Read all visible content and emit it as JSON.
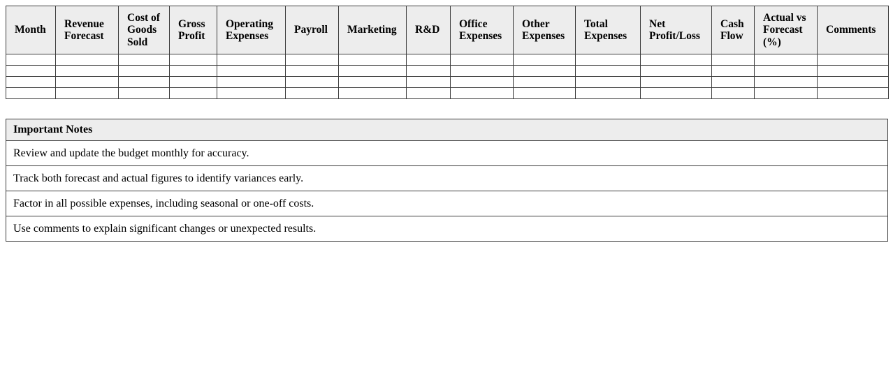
{
  "colors": {
    "header_bg": "#ededed",
    "border": "#3d3d3d",
    "text": "#000000",
    "page_bg": "#ffffff"
  },
  "budget_table": {
    "columns": [
      "Month",
      "Revenue\nForecast",
      "Cost of\nGoods\nSold",
      "Gross\nProfit",
      "Operating\nExpenses",
      "Payroll",
      "Marketing",
      "R&D",
      "Office\nExpenses",
      "Other\nExpenses",
      "Total\nExpenses",
      "Net\nProfit/Loss",
      "Cash\nFlow",
      "Actual vs\nForecast\n(%)",
      "Comments"
    ],
    "rows": [
      [
        "",
        "",
        "",
        "",
        "",
        "",
        "",
        "",
        "",
        "",
        "",
        "",
        "",
        "",
        ""
      ],
      [
        "",
        "",
        "",
        "",
        "",
        "",
        "",
        "",
        "",
        "",
        "",
        "",
        "",
        "",
        ""
      ],
      [
        "",
        "",
        "",
        "",
        "",
        "",
        "",
        "",
        "",
        "",
        "",
        "",
        "",
        "",
        ""
      ],
      [
        "",
        "",
        "",
        "",
        "",
        "",
        "",
        "",
        "",
        "",
        "",
        "",
        "",
        "",
        ""
      ]
    ]
  },
  "notes_table": {
    "title": "Important Notes",
    "items": [
      "Review and update the budget monthly for accuracy.",
      "Track both forecast and actual figures to identify variances early.",
      "Factor in all possible expenses, including seasonal or one-off costs.",
      "Use comments to explain significant changes or unexpected results."
    ]
  }
}
